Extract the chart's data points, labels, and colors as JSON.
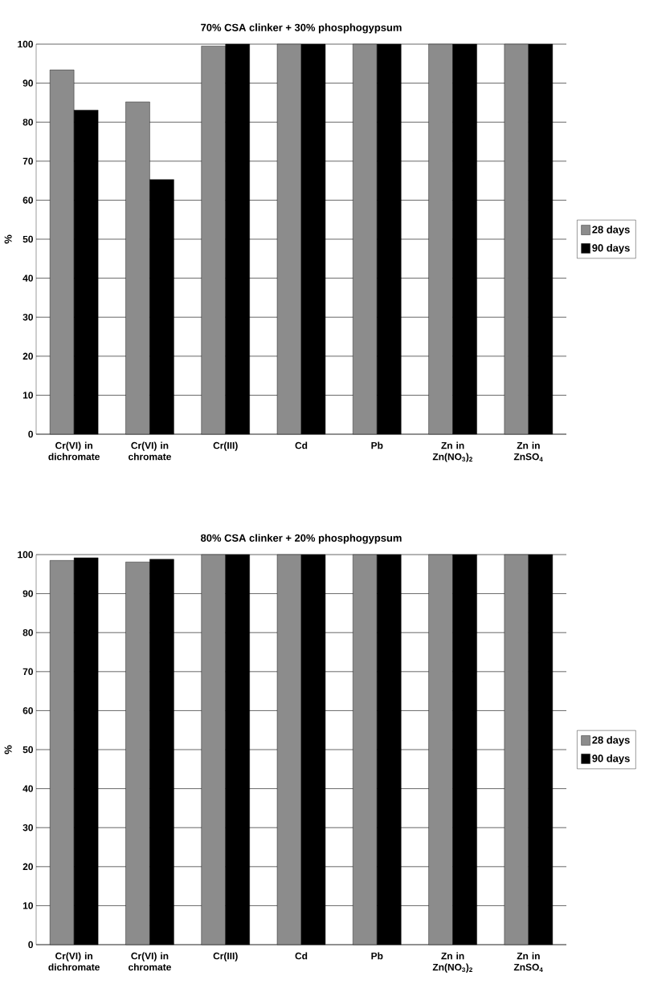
{
  "chart_data": [
    {
      "type": "bar",
      "title": "70% CSA clinker + 30% phosphogypsum",
      "ylabel": "%",
      "categories": [
        "Cr(VI) in dichromate",
        "Cr(VI) in chromate",
        "Cr(III)",
        "Cd",
        "Pb",
        "Zn in Zn(NO$_{3}$)$_{2}$",
        "Zn in ZnSO$_{4}$"
      ],
      "series": [
        {
          "name": "28 days",
          "color": "#8c8c8c",
          "values": [
            93.4,
            85.2,
            99.5,
            100,
            100,
            100,
            100
          ]
        },
        {
          "name": "90 days",
          "color": "#000000",
          "values": [
            83.1,
            65.3,
            100,
            100,
            100,
            100,
            100
          ]
        }
      ],
      "ylim": [
        0,
        100
      ],
      "yticks": [
        0,
        10,
        20,
        30,
        40,
        50,
        60,
        70,
        80,
        90,
        100
      ],
      "grid": "y",
      "legend": "right"
    },
    {
      "type": "bar",
      "title": "80% CSA clinker + 20% phosphogypsum",
      "ylabel": "%",
      "categories": [
        "Cr(VI) in dichromate",
        "Cr(VI) in chromate",
        "Cr(III)",
        "Cd",
        "Pb",
        "Zn in Zn(NO$_{3}$)$_{2}$",
        "Zn in ZnSO$_{4}$"
      ],
      "series": [
        {
          "name": "28 days",
          "color": "#8c8c8c",
          "values": [
            98.5,
            98.1,
            100,
            100,
            100,
            100,
            100
          ]
        },
        {
          "name": "90 days",
          "color": "#000000",
          "values": [
            99.2,
            98.8,
            100,
            100,
            100,
            100,
            100
          ]
        }
      ],
      "ylim": [
        0,
        100
      ],
      "yticks": [
        0,
        10,
        20,
        30,
        40,
        50,
        60,
        70,
        80,
        90,
        100
      ],
      "grid": "y",
      "legend": "right"
    }
  ]
}
